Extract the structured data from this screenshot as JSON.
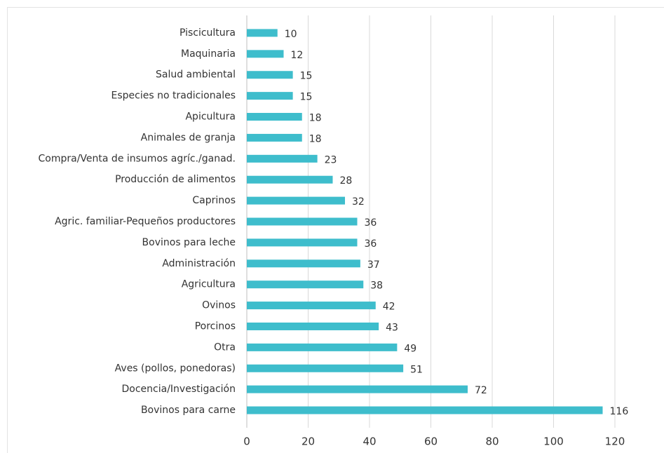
{
  "chart_data": {
    "type": "bar",
    "orientation": "horizontal",
    "categories": [
      "Piscicultura",
      "Maquinaria",
      "Salud ambiental",
      "Especies no tradicionales",
      "Apicultura",
      "Animales de granja",
      "Compra/Venta de insumos agríc./ganad.",
      "Producción de alimentos",
      "Caprinos",
      "Agric. familiar-Pequeños productores",
      "Bovinos para leche",
      "Administración",
      "Agricultura",
      "Ovinos",
      "Porcinos",
      "Otra",
      "Aves (pollos, ponedoras)",
      "Docencia/Investigación",
      "Bovinos para carne"
    ],
    "values": [
      10,
      12,
      15,
      15,
      18,
      18,
      23,
      28,
      32,
      36,
      36,
      37,
      38,
      42,
      43,
      49,
      51,
      72,
      116
    ],
    "color": "#3ebdcc",
    "xlim": [
      0,
      120
    ],
    "xticks": [
      0,
      20,
      40,
      60,
      80,
      100,
      120
    ],
    "grid": true
  }
}
